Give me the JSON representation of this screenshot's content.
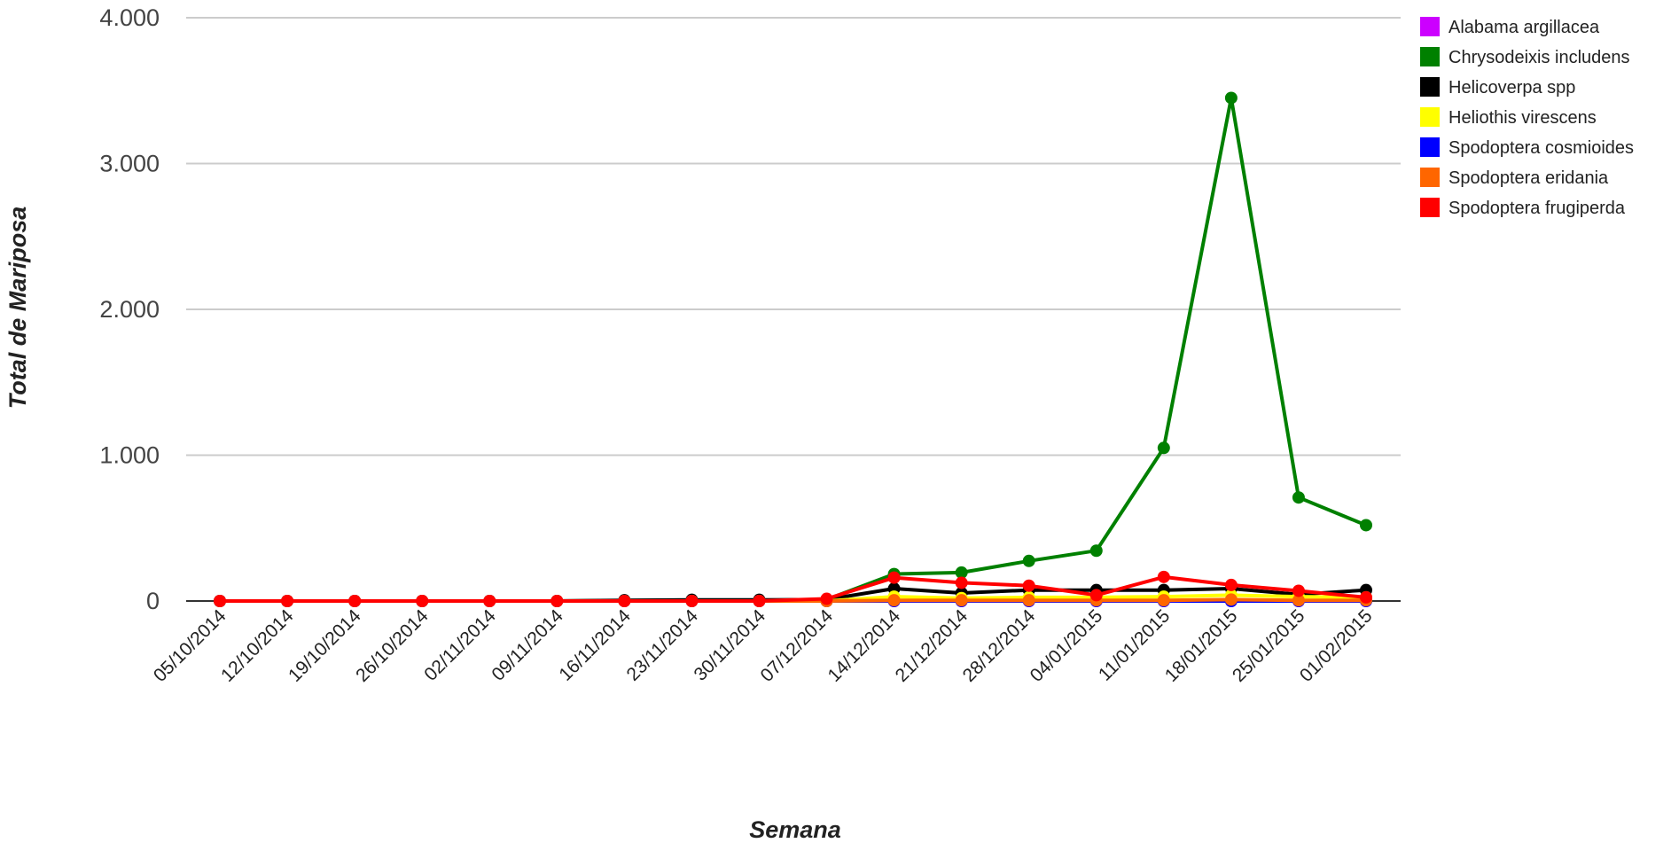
{
  "chart_data": {
    "type": "line",
    "title": "",
    "xlabel": "Semana",
    "ylabel": "Total de Mariposa",
    "ylim": [
      0,
      4000
    ],
    "yticks": [
      0,
      1000,
      2000,
      3000,
      4000
    ],
    "ytick_labels": [
      "0",
      "1.000",
      "2.000",
      "3.000",
      "4.000"
    ],
    "grid": true,
    "legend_position": "right",
    "categories": [
      "05/10/2014",
      "12/10/2014",
      "19/10/2014",
      "26/10/2014",
      "02/11/2014",
      "09/11/2014",
      "16/11/2014",
      "23/11/2014",
      "30/11/2014",
      "07/12/2014",
      "14/12/2014",
      "21/12/2014",
      "28/12/2014",
      "04/01/2015",
      "11/01/2015",
      "18/01/2015",
      "25/01/2015",
      "01/02/2015"
    ],
    "series": [
      {
        "name": "Alabama argillacea",
        "color": "#cc00ff",
        "values": [
          0,
          0,
          0,
          0,
          0,
          0,
          0,
          0,
          0,
          0,
          0,
          0,
          0,
          0,
          0,
          0,
          0,
          0
        ]
      },
      {
        "name": "Chrysodeixis includens",
        "color": "#008000",
        "values": [
          0,
          0,
          0,
          0,
          0,
          0,
          3,
          5,
          5,
          10,
          185,
          195,
          275,
          345,
          1050,
          3450,
          710,
          520
        ]
      },
      {
        "name": "Helicoverpa spp",
        "color": "#000000",
        "values": [
          0,
          0,
          0,
          0,
          0,
          0,
          5,
          8,
          8,
          10,
          85,
          55,
          75,
          75,
          75,
          85,
          45,
          75
        ]
      },
      {
        "name": "Heliothis virescens",
        "color": "#ffff00",
        "values": [
          0,
          0,
          0,
          0,
          0,
          0,
          0,
          0,
          0,
          0,
          30,
          20,
          25,
          25,
          30,
          40,
          30,
          25
        ]
      },
      {
        "name": "Spodoptera cosmioides",
        "color": "#0000ff",
        "values": [
          0,
          0,
          0,
          0,
          0,
          0,
          0,
          0,
          0,
          0,
          0,
          0,
          0,
          0,
          0,
          0,
          0,
          0
        ]
      },
      {
        "name": "Spodoptera eridania",
        "color": "#ff6600",
        "values": [
          0,
          0,
          0,
          0,
          0,
          0,
          0,
          0,
          0,
          0,
          5,
          5,
          5,
          5,
          5,
          10,
          5,
          5
        ]
      },
      {
        "name": "Spodoptera frugiperda",
        "color": "#ff0000",
        "values": [
          0,
          0,
          0,
          0,
          0,
          0,
          0,
          0,
          0,
          15,
          160,
          125,
          105,
          40,
          165,
          110,
          70,
          25
        ]
      }
    ]
  }
}
